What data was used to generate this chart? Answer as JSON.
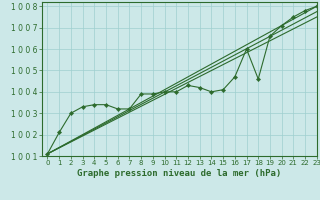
{
  "title": "Graphe pression niveau de la mer (hPa)",
  "bg_color": "#cce8e8",
  "grid_color": "#9fcfcf",
  "line_color": "#2d6b2d",
  "xlim": [
    -0.5,
    23
  ],
  "ylim": [
    1001,
    1008.2
  ],
  "xticks": [
    0,
    1,
    2,
    3,
    4,
    5,
    6,
    7,
    8,
    9,
    10,
    11,
    12,
    13,
    14,
    15,
    16,
    17,
    18,
    19,
    20,
    21,
    22,
    23
  ],
  "yticks": [
    1001,
    1002,
    1003,
    1004,
    1005,
    1006,
    1007,
    1008
  ],
  "xlabel_fontsize": 6.5,
  "tick_fontsize": 5.5,
  "series": [
    {
      "x": [
        0,
        1,
        2,
        3,
        4,
        5,
        6,
        7,
        8,
        9,
        10,
        11,
        12,
        13,
        14,
        15,
        16,
        17,
        18,
        19,
        20,
        21,
        22,
        23
      ],
      "y": [
        1001.1,
        1002.1,
        1003.0,
        1003.3,
        1003.4,
        1003.4,
        1003.2,
        1003.2,
        1003.9,
        1003.9,
        1004.0,
        1004.0,
        1004.3,
        1004.2,
        1004.0,
        1004.1,
        1004.7,
        1006.0,
        1004.6,
        1006.6,
        1007.1,
        1007.5,
        1007.8,
        1008.0
      ],
      "marker": true,
      "lw": 0.8
    },
    {
      "x": [
        0,
        23
      ],
      "y": [
        1001.1,
        1008.0
      ],
      "marker": false,
      "lw": 0.8
    },
    {
      "x": [
        0,
        23
      ],
      "y": [
        1001.1,
        1007.75
      ],
      "marker": false,
      "lw": 0.8
    },
    {
      "x": [
        0,
        23
      ],
      "y": [
        1001.1,
        1007.5
      ],
      "marker": false,
      "lw": 0.8
    }
  ]
}
